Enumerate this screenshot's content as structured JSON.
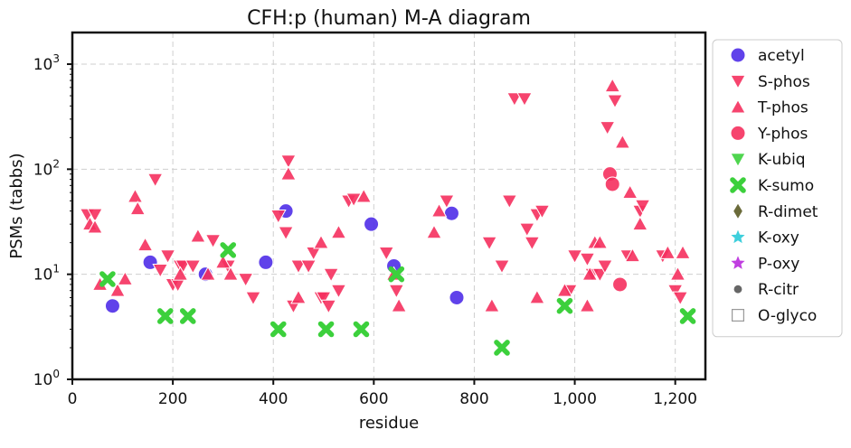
{
  "chart_data": {
    "type": "scatter",
    "title": "CFH:p (human) M-A diagram",
    "xlabel": "residue",
    "ylabel": "PSMs (tabbs)",
    "xlim": [
      0,
      1260
    ],
    "ylim": [
      1,
      2000
    ],
    "yscale": "log",
    "grid": true,
    "legend_position": "outside-right",
    "x_ticks": [
      0,
      200,
      400,
      600,
      800,
      1000,
      1200
    ],
    "x_tick_labels": [
      "0",
      "200",
      "400",
      "600",
      "800",
      "1,000",
      "1,200"
    ],
    "y_ticks": [
      1,
      10,
      100,
      1000
    ],
    "y_tick_labels": [
      "10",
      "10",
      "10",
      "10"
    ],
    "y_tick_exponents": [
      "0",
      "1",
      "2",
      "3"
    ],
    "series": [
      {
        "name": "acetyl",
        "marker": "circle",
        "color": "#4f2ee8",
        "points": [
          [
            80,
            5
          ],
          [
            155,
            13
          ],
          [
            265,
            10
          ],
          [
            385,
            13
          ],
          [
            425,
            40
          ],
          [
            595,
            30
          ],
          [
            640,
            12
          ],
          [
            755,
            38
          ],
          [
            765,
            6
          ]
        ]
      },
      {
        "name": "S-phos",
        "marker": "triangle-down",
        "color": "#f5305e",
        "points": [
          [
            30,
            37
          ],
          [
            45,
            37
          ],
          [
            165,
            80
          ],
          [
            175,
            11
          ],
          [
            190,
            15
          ],
          [
            200,
            8
          ],
          [
            210,
            8
          ],
          [
            215,
            12
          ],
          [
            220,
            12
          ],
          [
            240,
            12
          ],
          [
            280,
            21
          ],
          [
            310,
            12
          ],
          [
            345,
            9
          ],
          [
            360,
            6
          ],
          [
            410,
            36
          ],
          [
            425,
            25
          ],
          [
            430,
            120
          ],
          [
            440,
            5
          ],
          [
            450,
            12
          ],
          [
            470,
            12
          ],
          [
            480,
            16
          ],
          [
            495,
            6
          ],
          [
            500,
            6
          ],
          [
            510,
            5
          ],
          [
            515,
            10
          ],
          [
            530,
            7
          ],
          [
            550,
            50
          ],
          [
            560,
            52
          ],
          [
            625,
            16
          ],
          [
            645,
            7
          ],
          [
            745,
            50
          ],
          [
            830,
            20
          ],
          [
            855,
            12
          ],
          [
            870,
            50
          ],
          [
            880,
            470
          ],
          [
            900,
            470
          ],
          [
            905,
            27
          ],
          [
            915,
            20
          ],
          [
            925,
            37
          ],
          [
            935,
            40
          ],
          [
            990,
            7
          ],
          [
            1000,
            15
          ],
          [
            1025,
            14
          ],
          [
            1035,
            10
          ],
          [
            1050,
            10
          ],
          [
            1060,
            12
          ],
          [
            1065,
            250
          ],
          [
            1080,
            450
          ],
          [
            1105,
            15
          ],
          [
            1130,
            40
          ],
          [
            1135,
            45
          ],
          [
            1175,
            15
          ],
          [
            1200,
            7
          ],
          [
            1210,
            6
          ]
        ]
      },
      {
        "name": "T-phos",
        "marker": "triangle-up",
        "color": "#f5305e",
        "points": [
          [
            35,
            30
          ],
          [
            45,
            28
          ],
          [
            55,
            8
          ],
          [
            90,
            7
          ],
          [
            105,
            9
          ],
          [
            125,
            55
          ],
          [
            130,
            42
          ],
          [
            145,
            19
          ],
          [
            215,
            10
          ],
          [
            250,
            23
          ],
          [
            270,
            10
          ],
          [
            300,
            13
          ],
          [
            315,
            10
          ],
          [
            430,
            90
          ],
          [
            450,
            6
          ],
          [
            495,
            20
          ],
          [
            530,
            25
          ],
          [
            580,
            55
          ],
          [
            640,
            10
          ],
          [
            650,
            5
          ],
          [
            720,
            25
          ],
          [
            730,
            40
          ],
          [
            835,
            5
          ],
          [
            925,
            6
          ],
          [
            980,
            7
          ],
          [
            1025,
            5
          ],
          [
            1030,
            10
          ],
          [
            1040,
            20
          ],
          [
            1050,
            20
          ],
          [
            1075,
            620
          ],
          [
            1095,
            180
          ],
          [
            1110,
            60
          ],
          [
            1115,
            15
          ],
          [
            1130,
            30
          ],
          [
            1185,
            16
          ],
          [
            1205,
            10
          ],
          [
            1215,
            16
          ]
        ]
      },
      {
        "name": "Y-phos",
        "marker": "circle",
        "color": "#f5305e",
        "points": [
          [
            1070,
            90
          ],
          [
            1075,
            72
          ],
          [
            1090,
            8
          ]
        ]
      },
      {
        "name": "K-ubiq",
        "marker": "triangle-down",
        "color": "#3cd03c",
        "points": []
      },
      {
        "name": "K-sumo",
        "marker": "x",
        "color": "#3cd03c",
        "points": [
          [
            70,
            9
          ],
          [
            185,
            4
          ],
          [
            230,
            4
          ],
          [
            310,
            17
          ],
          [
            410,
            3
          ],
          [
            505,
            3
          ],
          [
            575,
            3
          ],
          [
            645,
            10
          ],
          [
            855,
            2
          ],
          [
            980,
            5
          ],
          [
            1225,
            4
          ]
        ]
      },
      {
        "name": "R-dimet",
        "marker": "diamond",
        "color": "#6b6b3a",
        "points": []
      },
      {
        "name": "K-oxy",
        "marker": "star",
        "color": "#3ecfdc",
        "points": []
      },
      {
        "name": "P-oxy",
        "marker": "star",
        "color": "#c03ee0",
        "points": []
      },
      {
        "name": "R-citr",
        "marker": "dot",
        "color": "#666666",
        "points": []
      },
      {
        "name": "O-glyco",
        "marker": "square-open",
        "color": "#999999",
        "points": []
      }
    ]
  }
}
